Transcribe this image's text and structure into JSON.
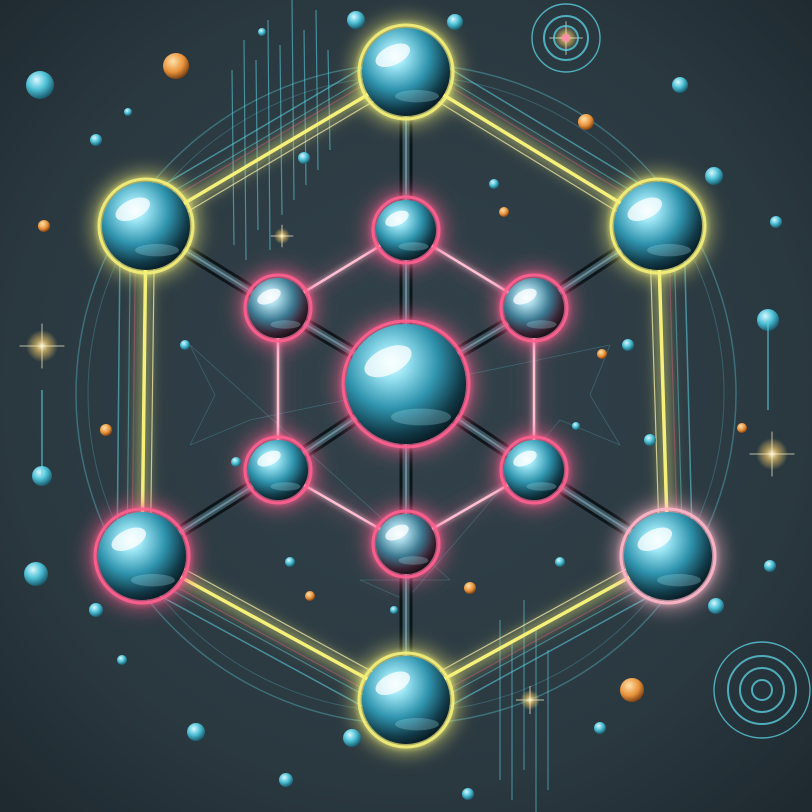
{
  "scene": {
    "subject": "glowing-hexagonal-molecule",
    "colors": {
      "background": "#2c3a42",
      "vignette": "#1a2329",
      "yellow_glow": "#f4f07a",
      "pink_glow": "#ff5f8f",
      "cyan_line": "#5ed6e6",
      "sphere_light": "#bff4ff",
      "sphere_mid": "#3fa8c2",
      "sphere_dark": "#0c2430",
      "bond": "#1b2a30",
      "orange_dot": "#f0a24a"
    }
  }
}
